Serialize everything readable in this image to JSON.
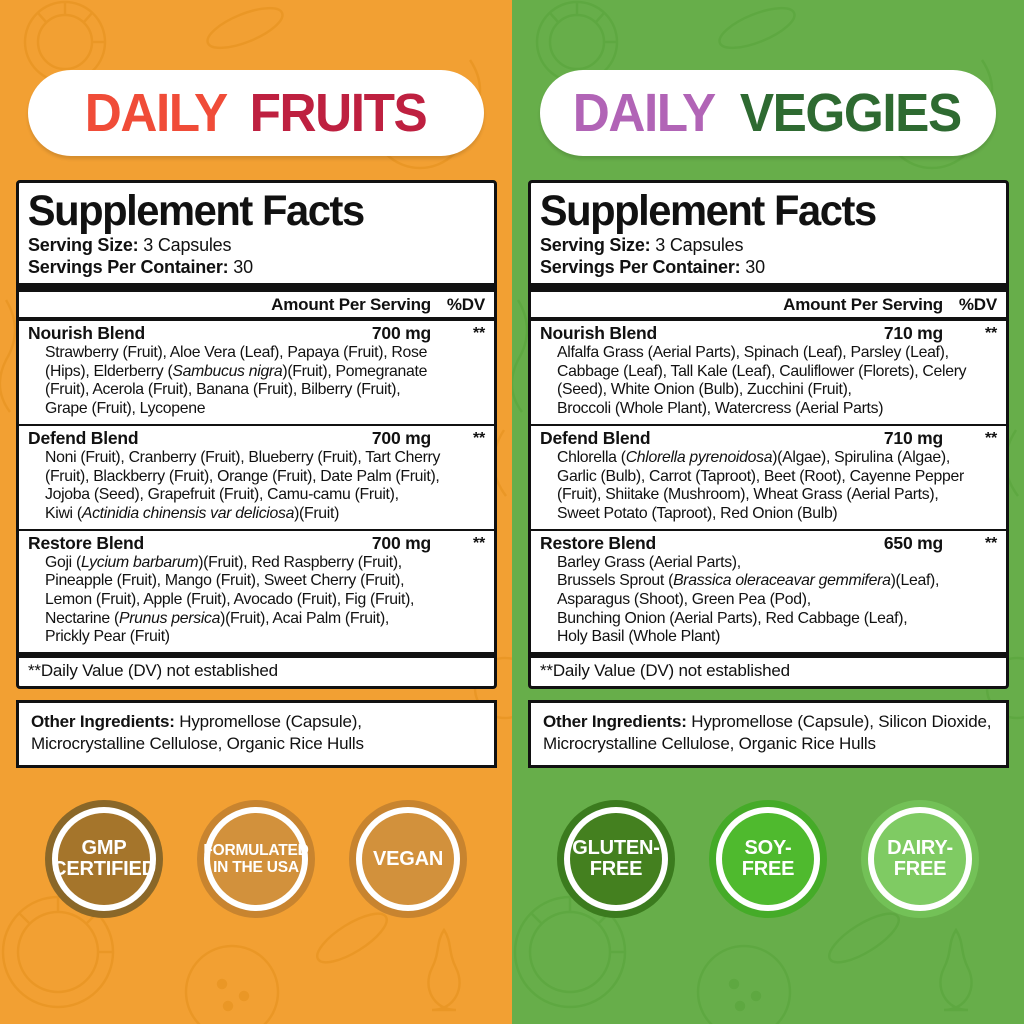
{
  "columns": [
    {
      "id": "fruits",
      "bg": "#F2A033",
      "banner": {
        "words": [
          {
            "text": "DAILY",
            "color": "#F04C38"
          },
          {
            "text": "FRUITS",
            "color": "#BE2040"
          }
        ]
      },
      "facts": {
        "title": "Supplement Facts",
        "serving_rows": [
          {
            "label": "Serving Size:",
            "value": " 3 Capsules"
          },
          {
            "label": "Servings Per Container:",
            "value": " 30"
          }
        ],
        "amount_header": "Amount Per Serving",
        "dv_header": "%DV",
        "blends": [
          {
            "name": "Nourish Blend",
            "amount": "700 mg",
            "dv": "**",
            "ingredients": [
              {
                "text": "Strawberry (Fruit), Aloe Vera (Leaf), Papaya (Fruit), Rose\n(Hips), Elderberry ("
              },
              {
                "text": "Sambucus nigra",
                "italic": true
              },
              {
                "text": ")(Fruit), Pomegranate\n(Fruit), Acerola (Fruit), Banana (Fruit), Bilberry (Fruit),\nGrape (Fruit), Lycopene"
              }
            ]
          },
          {
            "name": "Defend Blend",
            "amount": "700 mg",
            "dv": "**",
            "ingredients": [
              {
                "text": "Noni (Fruit), Cranberry (Fruit), Blueberry (Fruit), Tart Cherry\n(Fruit), Blackberry (Fruit), Orange (Fruit), Date Palm (Fruit),\nJojoba (Seed), Grapefruit (Fruit), Camu-camu (Fruit),\nKiwi ("
              },
              {
                "text": "Actinidia chinensis var deliciosa",
                "italic": true
              },
              {
                "text": ")(Fruit)"
              }
            ]
          },
          {
            "name": "Restore Blend",
            "amount": "700 mg",
            "dv": "**",
            "ingredients": [
              {
                "text": "Goji ("
              },
              {
                "text": "Lycium barbarum",
                "italic": true
              },
              {
                "text": ")(Fruit), Red Raspberry (Fruit),\nPineapple (Fruit), Mango (Fruit), Sweet Cherry (Fruit),\nLemon (Fruit), Apple (Fruit), Avocado (Fruit), Fig (Fruit),\nNectarine ("
              },
              {
                "text": "Prunus persica",
                "italic": true
              },
              {
                "text": ")(Fruit), Acai Palm (Fruit),\nPrickly Pear (Fruit)"
              }
            ]
          }
        ],
        "footnote": "**Daily Value (DV) not established"
      },
      "other": {
        "label": "Other Ingredients:",
        "text": " Hypromellose (Capsule),\nMicrocrystalline Cellulose, Organic Rice Hulls"
      },
      "badges": [
        {
          "lines": [
            "GMP",
            "CERTIFIED"
          ],
          "fill": "#A5752B",
          "ring": "#8A6728"
        },
        {
          "lines": [
            "FORMULATED",
            "IN THE USA"
          ],
          "fill": "#D2913C",
          "ring": "#C8842F"
        },
        {
          "lines": [
            "VEGAN"
          ],
          "fill": "#D2913C",
          "ring": "#C8842F"
        }
      ]
    },
    {
      "id": "veggies",
      "bg": "#67AE4A",
      "banner": {
        "words": [
          {
            "text": "DAILY",
            "color": "#B164B6"
          },
          {
            "text": "VEGGIES",
            "color": "#2E6A31"
          }
        ]
      },
      "facts": {
        "title": "Supplement Facts",
        "serving_rows": [
          {
            "label": "Serving Size:",
            "value": " 3 Capsules"
          },
          {
            "label": "Servings Per Container:",
            "value": " 30"
          }
        ],
        "amount_header": "Amount Per Serving",
        "dv_header": "%DV",
        "blends": [
          {
            "name": "Nourish Blend",
            "amount": "710 mg",
            "dv": "**",
            "ingredients": [
              {
                "text": "Alfalfa Grass (Aerial Parts), Spinach (Leaf), Parsley (Leaf),\nCabbage (Leaf), Tall Kale (Leaf), Cauliflower (Florets), Celery\n(Seed), White Onion (Bulb), Zucchini (Fruit),\nBroccoli (Whole Plant), Watercress (Aerial Parts)"
              }
            ]
          },
          {
            "name": "Defend Blend",
            "amount": "710 mg",
            "dv": "**",
            "ingredients": [
              {
                "text": "Chlorella ("
              },
              {
                "text": "Chlorella pyrenoidosa",
                "italic": true
              },
              {
                "text": ")(Algae), Spirulina (Algae),\nGarlic (Bulb), Carrot (Taproot), Beet (Root), Cayenne Pepper\n(Fruit), Shiitake (Mushroom), Wheat Grass (Aerial Parts),\nSweet Potato (Taproot), Red Onion (Bulb)"
              }
            ]
          },
          {
            "name": "Restore Blend",
            "amount": "650 mg",
            "dv": "**",
            "ingredients": [
              {
                "text": "Barley Grass (Aerial Parts),\nBrussels Sprout ("
              },
              {
                "text": "Brassica oleraceavar gemmifera",
                "italic": true
              },
              {
                "text": ")(Leaf),\nAsparagus (Shoot), Green Pea (Pod),\nBunching Onion (Aerial Parts), Red Cabbage (Leaf),\nHoly Basil (Whole Plant)"
              }
            ]
          }
        ],
        "footnote": "**Daily Value (DV) not established"
      },
      "other": {
        "label": "Other Ingredients:",
        "text": " Hypromellose (Capsule), Silicon Dioxide,\nMicrocrystalline Cellulose, Organic Rice Hulls"
      },
      "badges": [
        {
          "lines": [
            "GLUTEN-",
            "FREE"
          ],
          "fill": "#44801F",
          "ring": "#3B7B1E"
        },
        {
          "lines": [
            "SOY-",
            "FREE"
          ],
          "fill": "#4FBA2E",
          "ring": "#45AB28"
        },
        {
          "lines": [
            "DAIRY-",
            "FREE"
          ],
          "fill": "#7FCB63",
          "ring": "#73C157"
        }
      ]
    }
  ]
}
